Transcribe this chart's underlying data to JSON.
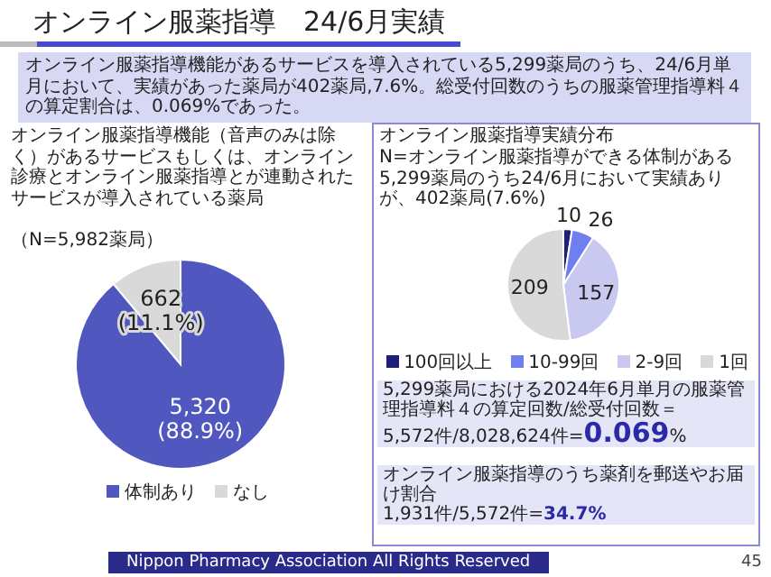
{
  "chart_data": [
    {
      "type": "other",
      "title": "オンライン服薬指導　24/6月実績",
      "subtitle": "オンライン服薬指導機能があるサービスを導入されている5,299薬局のうち、24/6月単月において、実績があった薬局が402薬局,7.6%。総受付回数のうちの服薬管理指導料４の算定割合は、0.069%であった。",
      "annotations": [
        "Nippon Pharmacy Association All Rights Reserved",
        "45"
      ]
    },
    {
      "type": "pie",
      "title": "オンライン服薬指導機能（音声のみは除く）があるサービスもしくは、オンライン診療とオンライン服薬指導とが連動されたサービスが導入されている薬局",
      "subtitle": "（N=5,982薬局）",
      "categories": [
        "体制あり",
        "なし"
      ],
      "values": [
        5320,
        662
      ],
      "colors": [
        "#5058c0",
        "#d9d9d9"
      ],
      "value_labels": [
        "5,320 (88.9%)",
        "662 (11.1%)"
      ],
      "legend": "bottom"
    },
    {
      "type": "pie",
      "title": "オンライン服薬指導実績分布",
      "subtitle": "N=オンライン服薬指導ができる体制がある5,299薬局のうち24/6月において実績ありが、402薬局(7.6%)",
      "categories": [
        "100回以上",
        "10-99回",
        "2-9回",
        "1回"
      ],
      "values": [
        10,
        26,
        157,
        209
      ],
      "colors": [
        "#1f1f7a",
        "#6f7ff0",
        "#c8c8f0",
        "#d9d9d9"
      ],
      "data_labels": true,
      "legend": "bottom",
      "annotations": [
        "5,299薬局における2024年6月単月の服薬管理指導料４の算定回数/総受付回数＝",
        "5,572件/8,028,624件=**0.069**%",
        "オンライン服薬指導のうち薬剤を郵送やお届け割合",
        "1,931件/5,572件=**34.7%**"
      ]
    }
  ]
}
